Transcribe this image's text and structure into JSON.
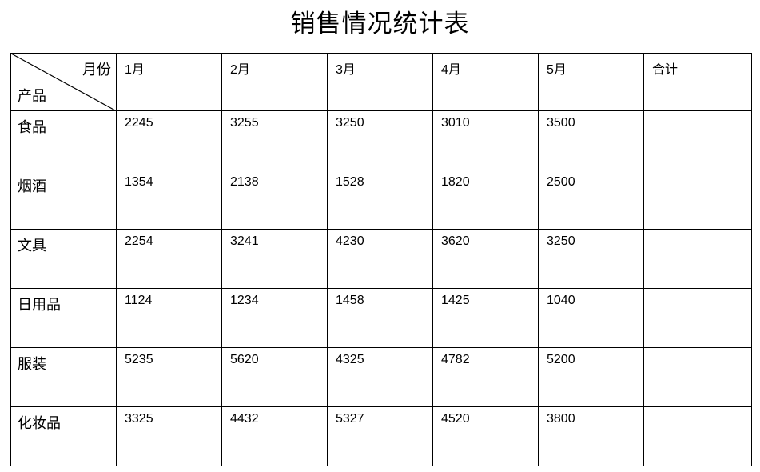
{
  "title": "销售情况统计表",
  "table": {
    "corner": {
      "top_right": "月份",
      "bottom_left": "产品"
    },
    "columns": [
      "1月",
      "2月",
      "3月",
      "4月",
      "5月",
      "合计"
    ],
    "rows": [
      {
        "product": "食品",
        "values": [
          "2245",
          "3255",
          "3250",
          "3010",
          "3500",
          ""
        ]
      },
      {
        "product": "烟酒",
        "values": [
          "1354",
          "2138",
          "1528",
          "1820",
          "2500",
          ""
        ]
      },
      {
        "product": "文具",
        "values": [
          "2254",
          "3241",
          "4230",
          "3620",
          "3250",
          ""
        ]
      },
      {
        "product": "日用品",
        "values": [
          "1124",
          "1234",
          "1458",
          "1425",
          "1040",
          ""
        ]
      },
      {
        "product": "服装",
        "values": [
          "5235",
          "5620",
          "4325",
          "4782",
          "5200",
          ""
        ]
      },
      {
        "product": "化妆品",
        "values": [
          "3325",
          "4432",
          "5327",
          "4520",
          "3800",
          ""
        ]
      }
    ]
  }
}
